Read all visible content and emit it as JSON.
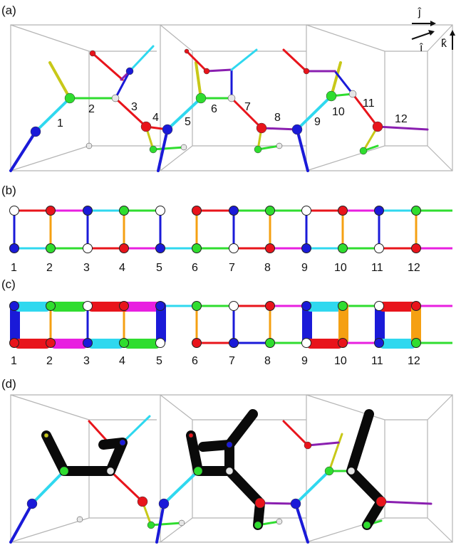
{
  "panels": {
    "a": "(a)",
    "b": "(b)",
    "c": "(c)",
    "d": "(d)"
  },
  "axes": {
    "j": "ĵ",
    "i": "î",
    "k": "k̂"
  },
  "panel_a_sites": [
    "1",
    "2",
    "3",
    "4",
    "5",
    "6",
    "7",
    "8",
    "9",
    "10",
    "11",
    "12"
  ],
  "panel_b_sites": [
    "1",
    "2",
    "3",
    "4",
    "5",
    "6",
    "7",
    "8",
    "9",
    "10",
    "11",
    "12"
  ],
  "panel_c_sites": [
    "1",
    "2",
    "3",
    "4",
    "5",
    "6",
    "7",
    "8",
    "9",
    "10",
    "11",
    "12"
  ],
  "colors": {
    "red": "#e8141b",
    "blue": "#1a1ad8",
    "cyan": "#2fd8ef",
    "green": "#2fdd2f",
    "magenta": "#e81fe0",
    "orange": "#f5a012",
    "yellow": "#c8c818",
    "purple": "#8a1fb0",
    "white": "#ffffff",
    "black": "#0a0a0a"
  }
}
